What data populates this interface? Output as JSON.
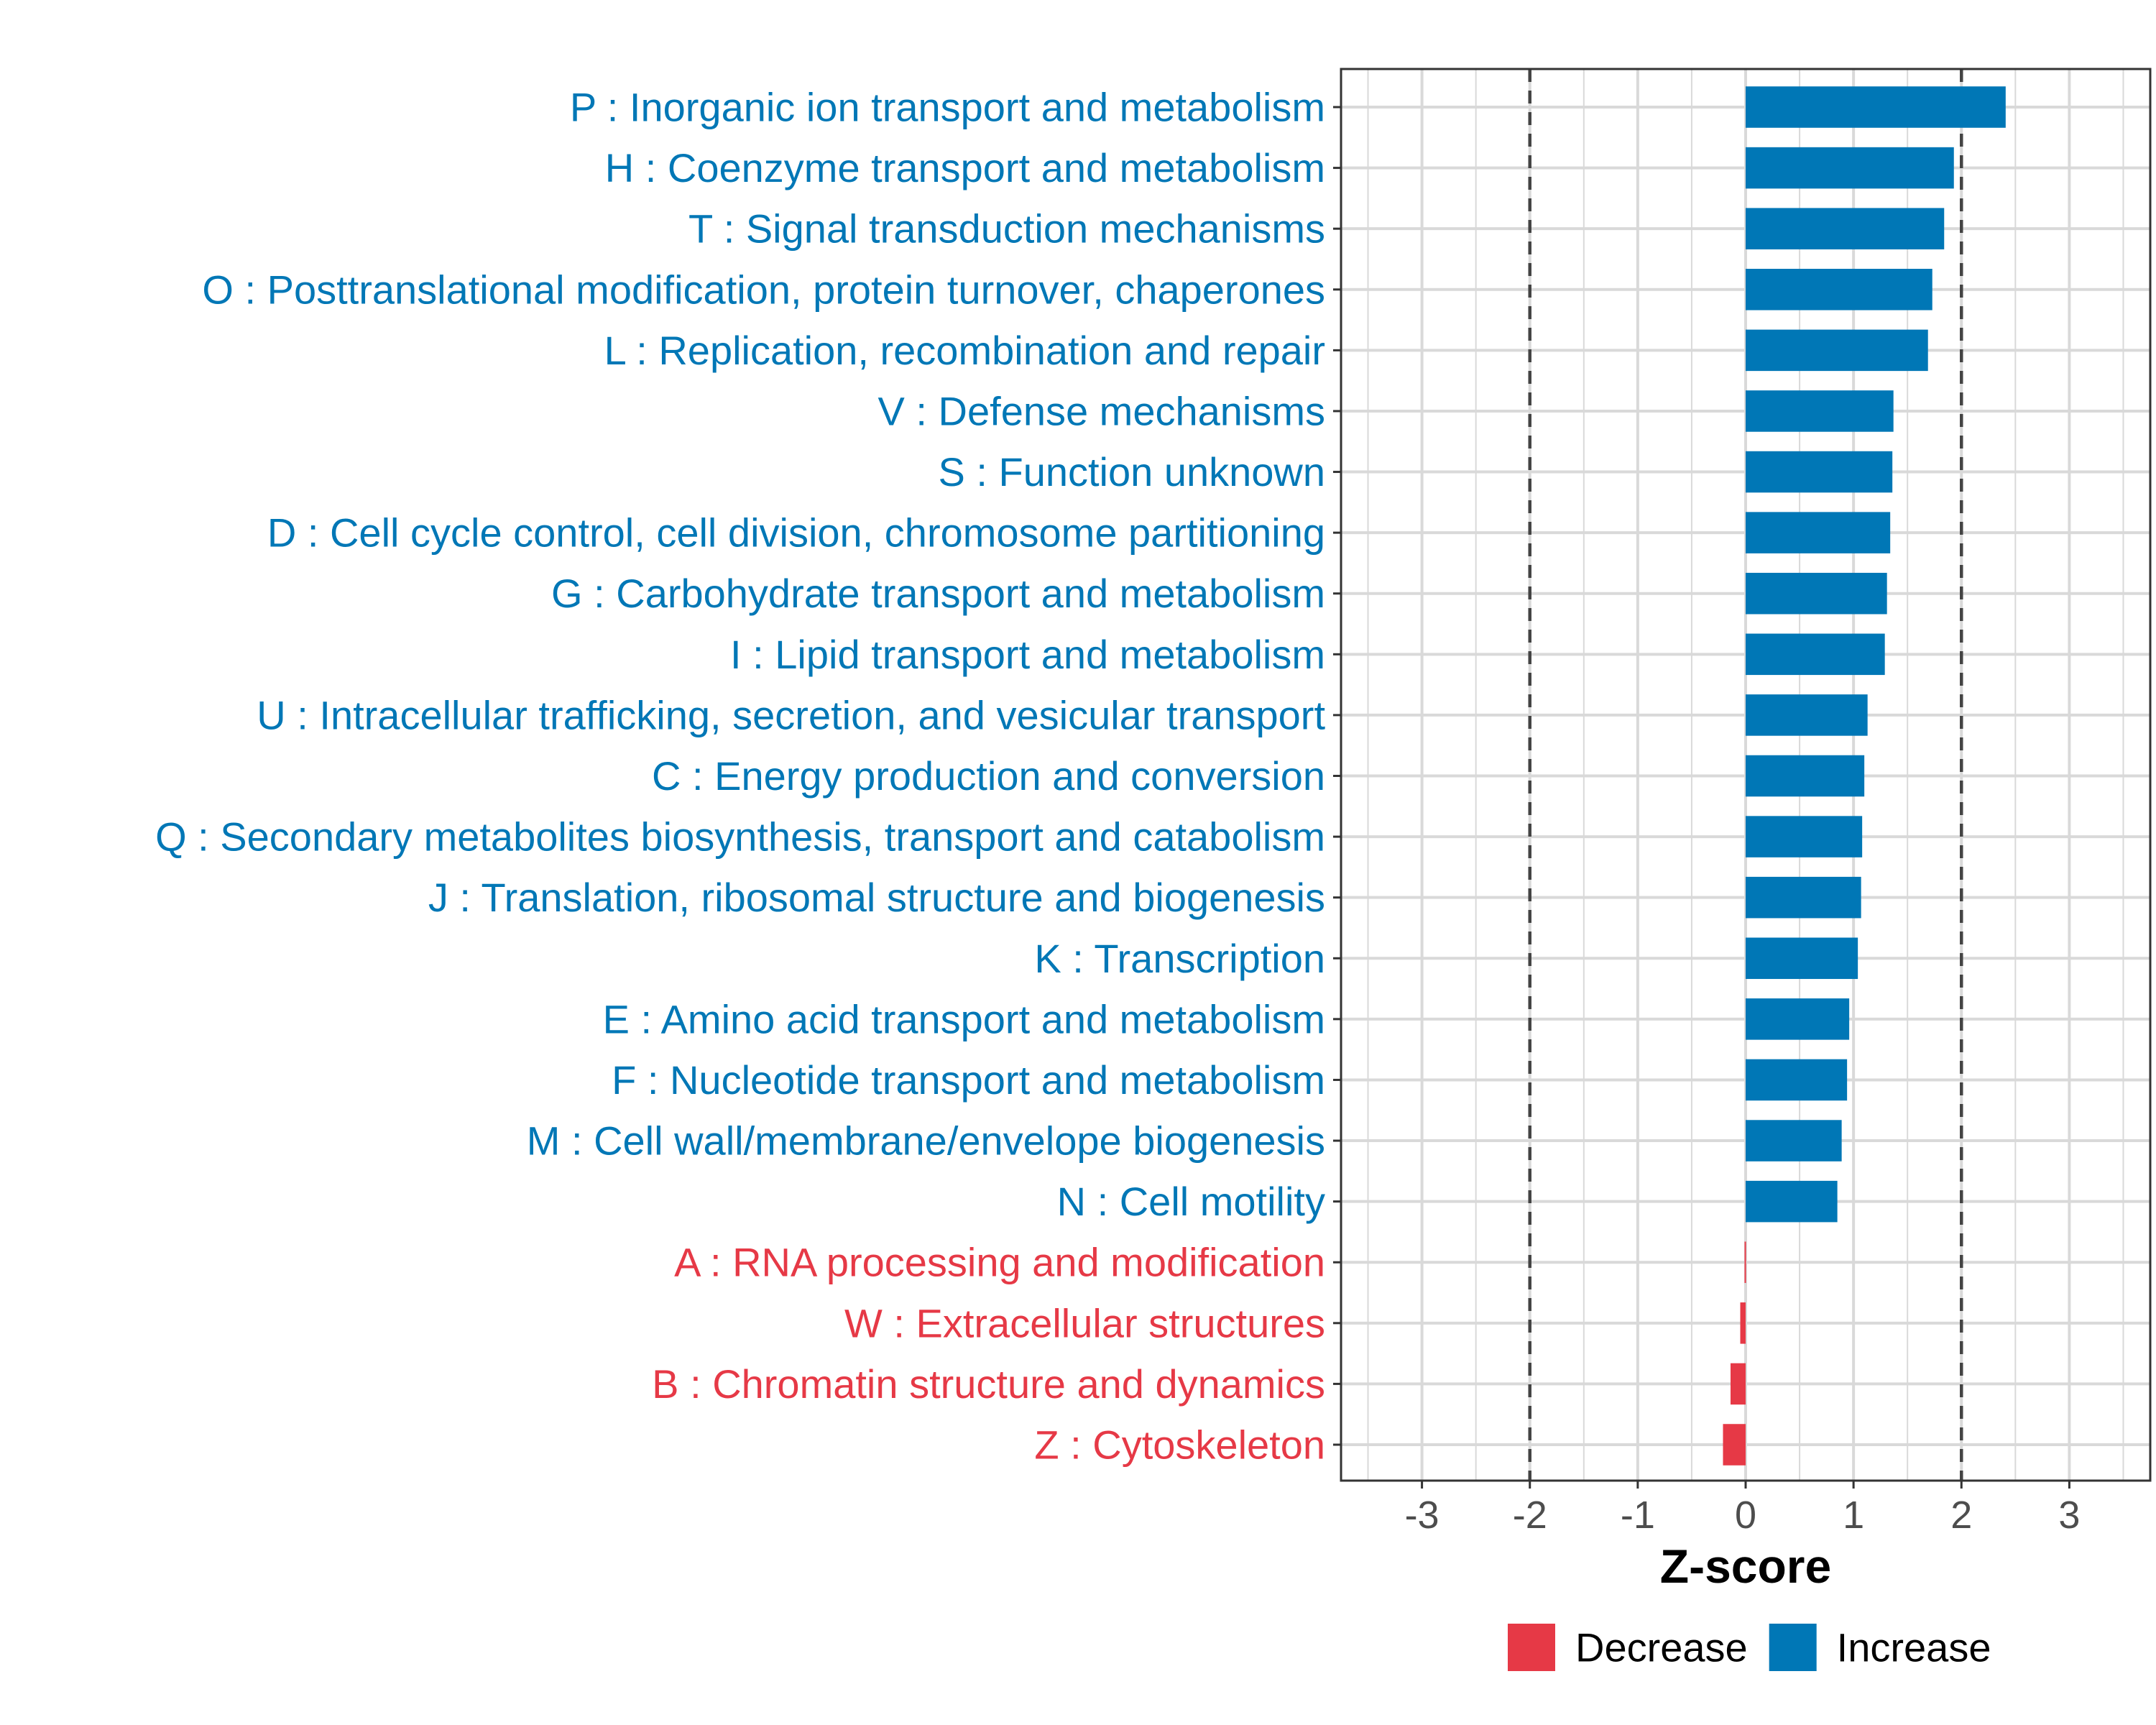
{
  "chart_data": {
    "type": "bar",
    "orientation": "horizontal",
    "title": "",
    "xlabel": "Z-score",
    "ylabel": "",
    "xlim": [
      -3.75,
      3.75
    ],
    "xticks": [
      -3,
      -2,
      -1,
      0,
      1,
      2,
      3
    ],
    "xtick_labels": [
      "-3",
      "-2",
      "-1",
      "0",
      "1",
      "2",
      "3"
    ],
    "reference_lines": [
      -2,
      2
    ],
    "grid": true,
    "legend_position": "bottom",
    "colors": {
      "Increase": "#0077B6",
      "Decrease": "#E63946"
    },
    "categories": [
      "P : Inorganic ion transport and metabolism",
      "H : Coenzyme transport and metabolism",
      "T : Signal transduction mechanisms",
      "O : Posttranslational modification, protein turnover, chaperones",
      "L : Replication, recombination and repair",
      "V : Defense mechanisms",
      "S : Function unknown",
      "D : Cell cycle control, cell division, chromosome partitioning",
      "G : Carbohydrate transport and metabolism",
      "I : Lipid transport and metabolism",
      "U : Intracellular trafficking, secretion, and vesicular transport",
      "C : Energy production and conversion",
      "Q : Secondary metabolites biosynthesis, transport and catabolism",
      "J : Translation, ribosomal structure and biogenesis",
      "K : Transcription",
      "E : Amino acid transport and metabolism",
      "F : Nucleotide transport and metabolism",
      "M : Cell wall/membrane/envelope biogenesis",
      "N : Cell motility",
      "A : RNA processing and modification",
      "W : Extracellular structures",
      "B : Chromatin structure and dynamics",
      "Z : Cytoskeleton"
    ],
    "values": [
      2.41,
      1.93,
      1.84,
      1.73,
      1.69,
      1.37,
      1.36,
      1.34,
      1.31,
      1.29,
      1.13,
      1.1,
      1.08,
      1.07,
      1.04,
      0.96,
      0.94,
      0.89,
      0.85,
      -0.01,
      -0.05,
      -0.14,
      -0.21
    ],
    "groups": [
      "Increase",
      "Increase",
      "Increase",
      "Increase",
      "Increase",
      "Increase",
      "Increase",
      "Increase",
      "Increase",
      "Increase",
      "Increase",
      "Increase",
      "Increase",
      "Increase",
      "Increase",
      "Increase",
      "Increase",
      "Increase",
      "Increase",
      "Decrease",
      "Decrease",
      "Decrease",
      "Decrease"
    ],
    "legend": [
      {
        "label": "Decrease",
        "color": "#E63946"
      },
      {
        "label": "Increase",
        "color": "#0077B6"
      }
    ]
  }
}
